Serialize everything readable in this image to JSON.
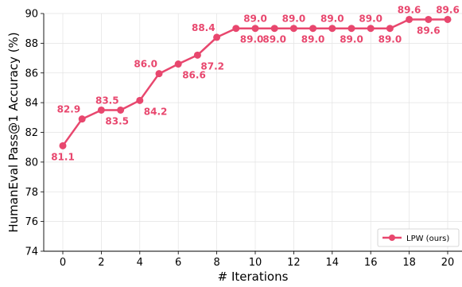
{
  "chart_data": {
    "type": "line",
    "xlabel": "# Iterations",
    "ylabel": "HumanEval Pass@1 Accuracy (%)",
    "xlim": [
      -1,
      21
    ],
    "ylim": [
      74,
      90
    ],
    "xticks": [
      "0",
      "2",
      "4",
      "6",
      "8",
      "10",
      "12",
      "14",
      "16",
      "18",
      "20"
    ],
    "yticks": [
      "74",
      "76",
      "78",
      "80",
      "82",
      "84",
      "86",
      "88",
      "90"
    ],
    "grid": true,
    "legend_position": "bottom-right",
    "series": [
      {
        "name": "LPW (ours)",
        "color": "#e8476e",
        "marker": "circle",
        "x": [
          0,
          1,
          2,
          3,
          4,
          5,
          6,
          7,
          8,
          9,
          10,
          11,
          12,
          13,
          14,
          15,
          16,
          17,
          18,
          19,
          20
        ],
        "y": [
          81.1,
          82.9,
          83.5,
          83.5,
          84.15,
          85.95,
          86.6,
          87.2,
          88.4,
          89.0,
          89.0,
          89.0,
          89.0,
          89.0,
          89.0,
          89.0,
          89.0,
          89.0,
          89.6,
          89.6,
          89.6
        ]
      }
    ],
    "annotations": [
      {
        "x": 0,
        "text": "81.1",
        "pos": "below"
      },
      {
        "x": 1,
        "text": "82.9",
        "pos": "above"
      },
      {
        "x": 2,
        "text": "83.5",
        "pos": "below"
      },
      {
        "x": 3,
        "text": "83.5",
        "pos": "above"
      },
      {
        "x": 4,
        "text": "84.2",
        "pos": "below"
      },
      {
        "x": 5,
        "text": "86.0",
        "pos": "above"
      },
      {
        "x": 6,
        "text": "86.6",
        "pos": "below"
      },
      {
        "x": 7,
        "text": "87.2",
        "pos": "below"
      },
      {
        "x": 8,
        "text": "88.4",
        "pos": "above"
      },
      {
        "x": 9,
        "text": "89.0",
        "pos": "below"
      },
      {
        "x": 10,
        "text": "89.0",
        "pos": "above"
      },
      {
        "x": 11,
        "text": "89.0",
        "pos": "below"
      },
      {
        "x": 12,
        "text": "89.0",
        "pos": "above"
      },
      {
        "x": 13,
        "text": "89.0",
        "pos": "below"
      },
      {
        "x": 14,
        "text": "89.0",
        "pos": "above"
      },
      {
        "x": 15,
        "text": "89.0",
        "pos": "below"
      },
      {
        "x": 16,
        "text": "89.0",
        "pos": "above"
      },
      {
        "x": 17,
        "text": "89.0",
        "pos": "below"
      },
      {
        "x": 18,
        "text": "89.6",
        "pos": "above"
      },
      {
        "x": 19,
        "text": "89.6",
        "pos": "below"
      },
      {
        "x": 20,
        "text": "89.6",
        "pos": "above"
      }
    ]
  }
}
